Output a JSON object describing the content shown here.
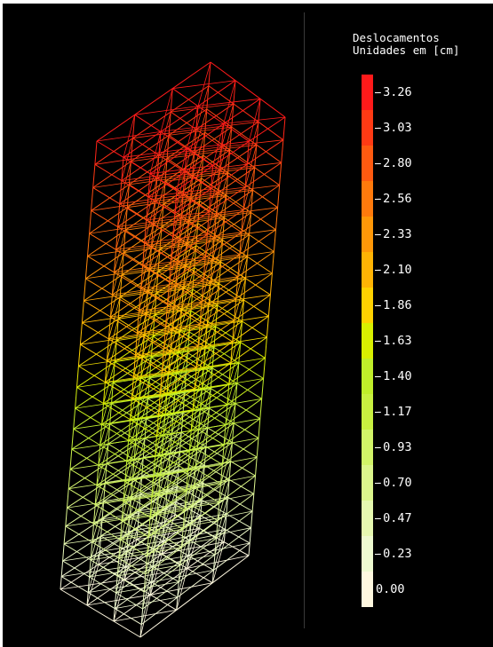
{
  "legend": {
    "title_line1": "Deslocamentos",
    "title_line2": "Unidades em [cm]",
    "entries": [
      {
        "value": "-3.26",
        "color": "#ff1a1a"
      },
      {
        "value": "-3.03",
        "color": "#ff3a14"
      },
      {
        "value": "-2.80",
        "color": "#ff5a10"
      },
      {
        "value": "-2.56",
        "color": "#ff7a0c"
      },
      {
        "value": "-2.33",
        "color": "#ff9808"
      },
      {
        "value": "-2.10",
        "color": "#ffb404"
      },
      {
        "value": "-1.86",
        "color": "#ffd200"
      },
      {
        "value": "-1.63",
        "color": "#d9f000"
      },
      {
        "value": "-1.40",
        "color": "#c0ee2a"
      },
      {
        "value": "-1.17",
        "color": "#c8f040"
      },
      {
        "value": "-0.93",
        "color": "#d2f468"
      },
      {
        "value": "-0.70",
        "color": "#dcf68c"
      },
      {
        "value": "-0.47",
        "color": "#e6f8b0"
      },
      {
        "value": "-0.23",
        "color": "#eefad0"
      },
      {
        "value": "0.00",
        "color": "#fff8e0"
      }
    ]
  },
  "model": {
    "top_color": "#ff2020",
    "bottom_color": "#e8f4f0"
  }
}
